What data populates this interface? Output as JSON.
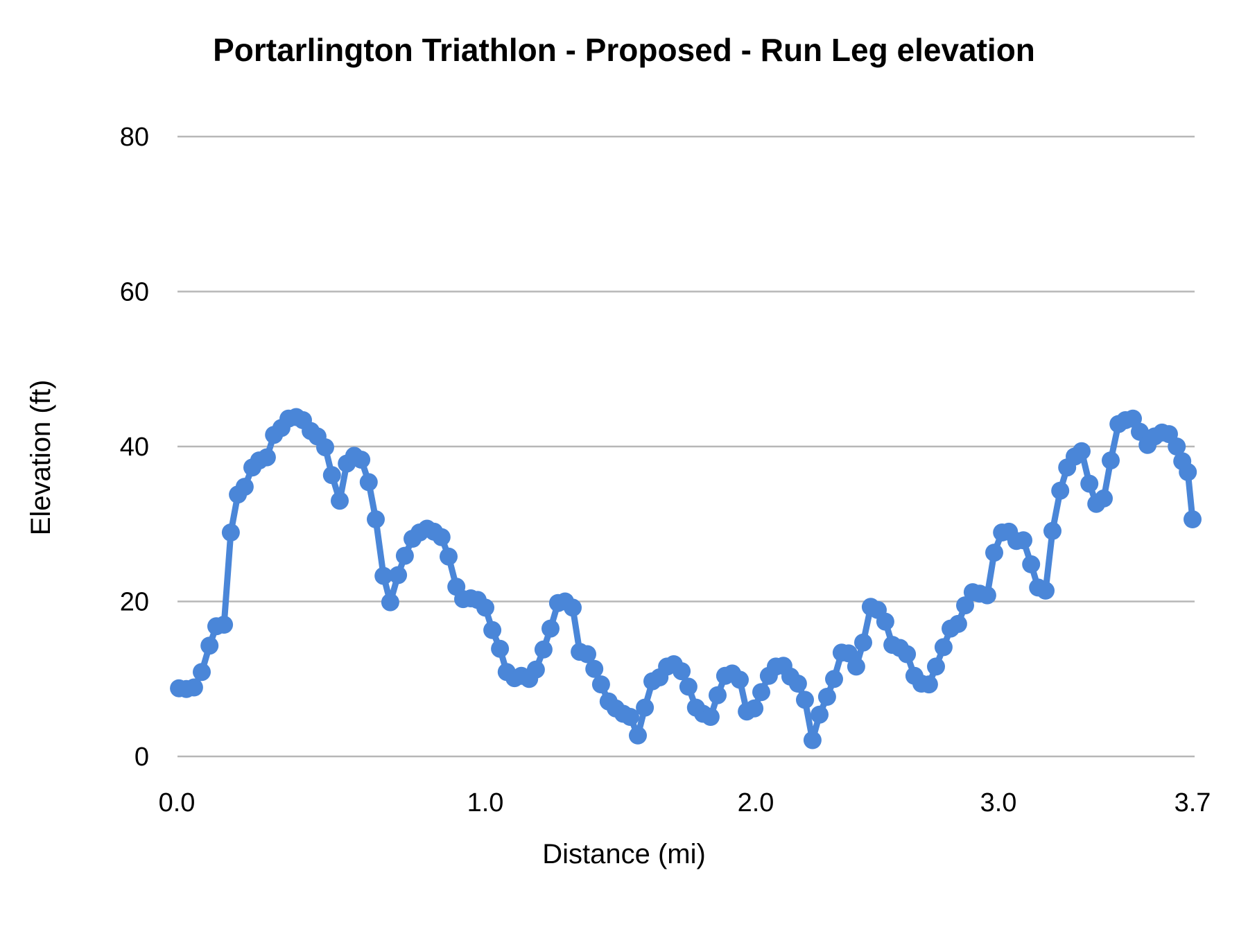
{
  "page": {
    "background_color": "#ffffff"
  },
  "chart_data": {
    "type": "line",
    "title": "Portarlington Triathlon - Proposed  - Run Leg elevation",
    "xlabel": "Distance (mi)",
    "ylabel": "Elevation (ft)",
    "series_color": "#4a86d8",
    "gridline_color": "#b7b7b7",
    "text_color": "#000000",
    "legend": "none",
    "grid": "horizontal-only",
    "marker_style": "filled-circle",
    "ylim": [
      0,
      80
    ],
    "y_ticks": [
      0,
      20,
      40,
      60,
      80
    ],
    "x_ticks": [
      {
        "label": "0.0",
        "mi": 0.0
      },
      {
        "label": "1.0",
        "mi": 1.0
      },
      {
        "label": "2.0",
        "mi": 2.0
      },
      {
        "label": "3.0",
        "mi": 3.0
      },
      {
        "label": "3.7",
        "mi": 3.7
      }
    ],
    "points": [
      [
        0.007,
        8.8
      ],
      [
        0.031,
        8.7
      ],
      [
        0.056,
        8.9
      ],
      [
        0.081,
        10.9
      ],
      [
        0.106,
        14.3
      ],
      [
        0.128,
        16.8
      ],
      [
        0.153,
        17.0
      ],
      [
        0.175,
        28.9
      ],
      [
        0.198,
        33.8
      ],
      [
        0.22,
        34.8
      ],
      [
        0.245,
        37.3
      ],
      [
        0.267,
        38.2
      ],
      [
        0.292,
        38.6
      ],
      [
        0.315,
        41.5
      ],
      [
        0.339,
        42.4
      ],
      [
        0.362,
        43.6
      ],
      [
        0.387,
        43.8
      ],
      [
        0.409,
        43.4
      ],
      [
        0.434,
        42.0
      ],
      [
        0.456,
        41.3
      ],
      [
        0.481,
        39.9
      ],
      [
        0.503,
        36.3
      ],
      [
        0.528,
        33.0
      ],
      [
        0.551,
        37.8
      ],
      [
        0.575,
        38.8
      ],
      [
        0.598,
        38.3
      ],
      [
        0.622,
        35.4
      ],
      [
        0.645,
        30.6
      ],
      [
        0.67,
        23.3
      ],
      [
        0.692,
        19.9
      ],
      [
        0.717,
        23.4
      ],
      [
        0.739,
        25.9
      ],
      [
        0.764,
        28.1
      ],
      [
        0.787,
        28.9
      ],
      [
        0.811,
        29.4
      ],
      [
        0.834,
        29.0
      ],
      [
        0.858,
        28.3
      ],
      [
        0.881,
        25.8
      ],
      [
        0.906,
        21.9
      ],
      [
        0.928,
        20.3
      ],
      [
        0.953,
        20.4
      ],
      [
        0.975,
        20.2
      ],
      [
        1.0,
        19.2
      ],
      [
        1.026,
        16.3
      ],
      [
        1.054,
        13.9
      ],
      [
        1.079,
        10.9
      ],
      [
        1.108,
        10.1
      ],
      [
        1.133,
        10.4
      ],
      [
        1.162,
        10.0
      ],
      [
        1.187,
        11.2
      ],
      [
        1.215,
        13.8
      ],
      [
        1.241,
        16.5
      ],
      [
        1.269,
        19.8
      ],
      [
        1.295,
        20.0
      ],
      [
        1.323,
        19.2
      ],
      [
        1.349,
        13.5
      ],
      [
        1.377,
        13.2
      ],
      [
        1.403,
        11.3
      ],
      [
        1.428,
        9.3
      ],
      [
        1.456,
        7.1
      ],
      [
        1.482,
        6.2
      ],
      [
        1.51,
        5.5
      ],
      [
        1.536,
        5.1
      ],
      [
        1.564,
        2.7
      ],
      [
        1.59,
        6.3
      ],
      [
        1.618,
        9.7
      ],
      [
        1.644,
        10.2
      ],
      [
        1.672,
        11.6
      ],
      [
        1.697,
        11.9
      ],
      [
        1.726,
        11.0
      ],
      [
        1.751,
        9.0
      ],
      [
        1.779,
        6.3
      ],
      [
        1.805,
        5.5
      ],
      [
        1.833,
        5.1
      ],
      [
        1.859,
        7.9
      ],
      [
        1.887,
        10.4
      ],
      [
        1.913,
        10.7
      ],
      [
        1.941,
        9.9
      ],
      [
        1.967,
        5.8
      ],
      [
        1.995,
        6.2
      ],
      [
        2.023,
        8.3
      ],
      [
        2.054,
        10.4
      ],
      [
        2.083,
        11.6
      ],
      [
        2.114,
        11.7
      ],
      [
        2.143,
        10.3
      ],
      [
        2.174,
        9.4
      ],
      [
        2.203,
        7.3
      ],
      [
        2.234,
        2.1
      ],
      [
        2.263,
        5.4
      ],
      [
        2.294,
        7.7
      ],
      [
        2.323,
        10.0
      ],
      [
        2.354,
        13.4
      ],
      [
        2.383,
        13.3
      ],
      [
        2.414,
        11.6
      ],
      [
        2.443,
        14.7
      ],
      [
        2.474,
        19.3
      ],
      [
        2.503,
        18.9
      ],
      [
        2.534,
        17.4
      ],
      [
        2.563,
        14.4
      ],
      [
        2.594,
        14.0
      ],
      [
        2.623,
        13.2
      ],
      [
        2.654,
        10.4
      ],
      [
        2.683,
        9.4
      ],
      [
        2.714,
        9.3
      ],
      [
        2.743,
        11.6
      ],
      [
        2.774,
        14.1
      ],
      [
        2.803,
        16.5
      ],
      [
        2.834,
        17.1
      ],
      [
        2.863,
        19.5
      ],
      [
        2.894,
        21.2
      ],
      [
        2.923,
        21.0
      ],
      [
        2.954,
        20.8
      ],
      [
        2.983,
        26.3
      ],
      [
        3.013,
        28.9
      ],
      [
        3.038,
        29.0
      ],
      [
        3.065,
        27.8
      ],
      [
        3.09,
        27.9
      ],
      [
        3.118,
        24.8
      ],
      [
        3.143,
        21.8
      ],
      [
        3.17,
        21.4
      ],
      [
        3.195,
        29.1
      ],
      [
        3.223,
        34.3
      ],
      [
        3.248,
        37.3
      ],
      [
        3.275,
        38.7
      ],
      [
        3.3,
        39.4
      ],
      [
        3.328,
        35.2
      ],
      [
        3.353,
        32.6
      ],
      [
        3.38,
        33.3
      ],
      [
        3.405,
        38.2
      ],
      [
        3.433,
        42.9
      ],
      [
        3.458,
        43.4
      ],
      [
        3.485,
        43.6
      ],
      [
        3.51,
        41.9
      ],
      [
        3.538,
        40.2
      ],
      [
        3.563,
        41.3
      ],
      [
        3.59,
        41.8
      ],
      [
        3.615,
        41.6
      ],
      [
        3.643,
        40.0
      ],
      [
        3.663,
        38.1
      ],
      [
        3.683,
        36.7
      ],
      [
        3.7,
        30.6
      ]
    ]
  }
}
